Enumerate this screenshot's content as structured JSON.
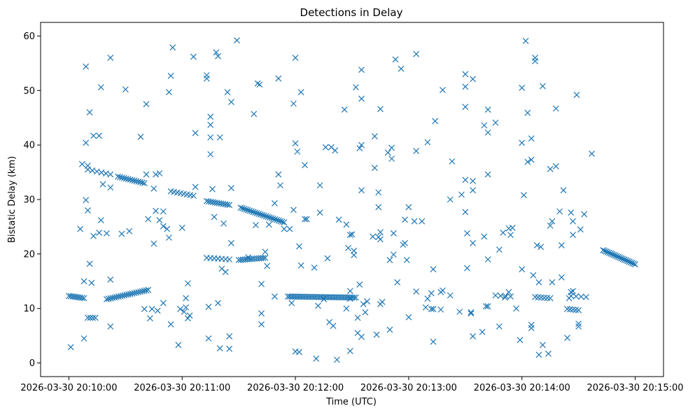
{
  "chart_data": {
    "type": "scatter",
    "title": "Detections in Delay",
    "xlabel": "Time (UTC)",
    "ylabel": "Bistatic Delay (km)",
    "x_unit": "seconds after 2026-03-30 20:10:00",
    "xlim": [
      -15,
      315
    ],
    "ylim": [
      -2.5,
      62.5
    ],
    "x_ticks": [
      {
        "value": 0,
        "label": "2026-03-30 20:10:00"
      },
      {
        "value": 60,
        "label": "2026-03-30 20:11:00"
      },
      {
        "value": 120,
        "label": "2026-03-30 20:12:00"
      },
      {
        "value": 180,
        "label": "2026-03-30 20:13:00"
      },
      {
        "value": 240,
        "label": "2026-03-30 20:14:00"
      },
      {
        "value": 300,
        "label": "2026-03-30 20:15:00"
      }
    ],
    "y_ticks": [
      {
        "value": 0,
        "label": "0"
      },
      {
        "value": 10,
        "label": "10"
      },
      {
        "value": 20,
        "label": "20"
      },
      {
        "value": 30,
        "label": "30"
      },
      {
        "value": 40,
        "label": "40"
      },
      {
        "value": 50,
        "label": "50"
      },
      {
        "value": 60,
        "label": "60"
      }
    ],
    "marker": "x",
    "color": "#1f77b4",
    "tracks": [
      {
        "name": "track-a",
        "t_start": 0,
        "t_end": 8,
        "y_start": 12.3,
        "y_end": 11.9,
        "count": 9
      },
      {
        "name": "track-b",
        "t_start": 10,
        "t_end": 14,
        "y_start": 8.3,
        "y_end": 8.3,
        "count": 4
      },
      {
        "name": "track-c",
        "t_start": 20,
        "t_end": 42,
        "y_start": 11.7,
        "y_end": 13.4,
        "count": 22
      },
      {
        "name": "track-d",
        "t_start": 10,
        "t_end": 22,
        "y_start": 35.5,
        "y_end": 34.6,
        "count": 6
      },
      {
        "name": "track-e",
        "t_start": 26,
        "t_end": 40,
        "y_start": 34.2,
        "y_end": 33.0,
        "count": 14
      },
      {
        "name": "track-f",
        "t_start": 54,
        "t_end": 66,
        "y_start": 31.5,
        "y_end": 30.7,
        "count": 8
      },
      {
        "name": "track-g",
        "t_start": 73,
        "t_end": 85,
        "y_start": 29.7,
        "y_end": 29.0,
        "count": 12
      },
      {
        "name": "track-h",
        "t_start": 91,
        "t_end": 114,
        "y_start": 28.5,
        "y_end": 25.8,
        "count": 25
      },
      {
        "name": "track-i",
        "t_start": 73,
        "t_end": 85,
        "y_start": 19.3,
        "y_end": 19.0,
        "count": 7
      },
      {
        "name": "track-j",
        "t_start": 90,
        "t_end": 104,
        "y_start": 18.9,
        "y_end": 19.3,
        "count": 14
      },
      {
        "name": "track-k",
        "t_start": 116,
        "t_end": 152,
        "y_start": 12.2,
        "y_end": 12.0,
        "count": 38
      },
      {
        "name": "track-l",
        "t_start": 226,
        "t_end": 234,
        "y_start": 12.4,
        "y_end": 12.2,
        "count": 4
      },
      {
        "name": "track-m",
        "t_start": 247,
        "t_end": 255,
        "y_start": 12.1,
        "y_end": 11.9,
        "count": 6
      },
      {
        "name": "track-n",
        "t_start": 266,
        "t_end": 274,
        "y_start": 12.3,
        "y_end": 12.1,
        "count": 4
      },
      {
        "name": "track-o",
        "t_start": 264,
        "t_end": 270,
        "y_start": 9.9,
        "y_end": 9.7,
        "count": 5
      },
      {
        "name": "track-p",
        "t_start": 283,
        "t_end": 300,
        "y_start": 20.7,
        "y_end": 18.1,
        "count": 22
      }
    ],
    "scattered_points": [
      [
        1,
        2.9
      ],
      [
        6,
        24.6
      ],
      [
        7,
        36.5
      ],
      [
        8,
        15.0
      ],
      [
        8,
        4.5
      ],
      [
        9,
        54.4
      ],
      [
        9,
        40.4
      ],
      [
        9,
        29.9
      ],
      [
        10,
        28.0
      ],
      [
        10,
        36.2
      ],
      [
        11,
        46.0
      ],
      [
        11,
        18.2
      ],
      [
        12,
        14.7
      ],
      [
        13,
        41.7
      ],
      [
        13,
        23.3
      ],
      [
        16,
        41.7
      ],
      [
        16,
        23.9
      ],
      [
        17,
        50.6
      ],
      [
        17,
        26.2
      ],
      [
        18,
        32.8
      ],
      [
        20,
        23.8
      ],
      [
        22,
        56.0
      ],
      [
        22,
        32.2
      ],
      [
        22,
        15.3
      ],
      [
        22,
        6.7
      ],
      [
        28,
        23.7
      ],
      [
        30,
        50.2
      ],
      [
        32,
        24.2
      ],
      [
        38,
        41.5
      ],
      [
        40,
        9.9
      ],
      [
        41,
        47.5
      ],
      [
        41,
        34.6
      ],
      [
        42,
        26.4
      ],
      [
        43,
        8.2
      ],
      [
        44,
        9.9
      ],
      [
        45,
        21.9
      ],
      [
        45,
        32.0
      ],
      [
        46,
        27.9
      ],
      [
        46,
        34.6
      ],
      [
        47,
        9.6
      ],
      [
        48,
        34.8
      ],
      [
        48,
        26.2
      ],
      [
        50,
        27.8
      ],
      [
        50,
        25.1
      ],
      [
        50,
        11.0
      ],
      [
        52,
        24.6
      ],
      [
        53,
        23.0
      ],
      [
        53,
        49.7
      ],
      [
        54,
        7.1
      ],
      [
        54,
        52.7
      ],
      [
        55,
        57.9
      ],
      [
        58,
        3.3
      ],
      [
        59,
        9.9
      ],
      [
        60,
        24.8
      ],
      [
        61,
        9.4
      ],
      [
        62,
        11.9
      ],
      [
        62,
        10.2
      ],
      [
        63,
        14.6
      ],
      [
        63,
        8.2
      ],
      [
        64,
        8.7
      ],
      [
        66,
        56.2
      ],
      [
        67,
        42.2
      ],
      [
        67,
        32.3
      ],
      [
        73,
        52.8
      ],
      [
        73,
        52.2
      ],
      [
        74,
        10.3
      ],
      [
        74,
        4.5
      ],
      [
        75,
        45.2
      ],
      [
        75,
        43.7
      ],
      [
        75,
        38.3
      ],
      [
        75,
        41.4
      ],
      [
        76,
        31.9
      ],
      [
        77,
        26.8
      ],
      [
        78,
        57.0
      ],
      [
        79,
        11.0
      ],
      [
        79,
        56.3
      ],
      [
        80,
        41.4
      ],
      [
        80,
        2.7
      ],
      [
        81,
        17.3
      ],
      [
        82,
        25.6
      ],
      [
        83,
        16.7
      ],
      [
        84,
        49.7
      ],
      [
        85,
        2.6
      ],
      [
        85,
        4.9
      ],
      [
        86,
        47.9
      ],
      [
        86,
        22.0
      ],
      [
        86,
        32.1
      ],
      [
        89,
        59.2
      ],
      [
        95,
        19.4
      ],
      [
        98,
        45.7
      ],
      [
        99,
        25.3
      ],
      [
        100,
        51.3
      ],
      [
        101,
        51.1
      ],
      [
        102,
        7.1
      ],
      [
        102,
        9.1
      ],
      [
        102,
        14.5
      ],
      [
        104,
        20.4
      ],
      [
        105,
        17.8
      ],
      [
        106,
        25.4
      ],
      [
        109,
        29.3
      ],
      [
        109,
        12.2
      ],
      [
        111,
        52.2
      ],
      [
        111,
        34.6
      ],
      [
        112,
        32.6
      ],
      [
        114,
        24.6
      ],
      [
        117,
        24.6
      ],
      [
        118,
        11.0
      ],
      [
        119,
        47.6
      ],
      [
        119,
        28.1
      ],
      [
        120,
        2.1
      ],
      [
        120,
        56.0
      ],
      [
        120,
        40.3
      ],
      [
        121,
        38.8
      ],
      [
        122,
        21.4
      ],
      [
        122,
        2.0
      ],
      [
        123,
        49.7
      ],
      [
        123,
        17.9
      ],
      [
        125,
        36.3
      ],
      [
        125,
        26.4
      ],
      [
        126,
        26.4
      ],
      [
        130,
        17.5
      ],
      [
        131,
        0.8
      ],
      [
        132,
        10.5
      ],
      [
        133,
        27.6
      ],
      [
        133,
        32.6
      ],
      [
        135,
        11.7
      ],
      [
        136,
        39.6
      ],
      [
        137,
        19.2
      ],
      [
        138,
        7.5
      ],
      [
        139,
        39.6
      ],
      [
        140,
        6.8
      ],
      [
        141,
        39.0
      ],
      [
        142,
        0.6
      ],
      [
        143,
        26.3
      ],
      [
        146,
        46.5
      ],
      [
        147,
        10.0
      ],
      [
        147,
        25.4
      ],
      [
        148,
        21.1
      ],
      [
        149,
        2.2
      ],
      [
        149,
        11.8
      ],
      [
        149,
        23.5
      ],
      [
        149,
        13.2
      ],
      [
        150,
        23.6
      ],
      [
        151,
        19.8
      ],
      [
        151,
        20.6
      ],
      [
        152,
        50.6
      ],
      [
        153,
        8.3
      ],
      [
        153,
        5.5
      ],
      [
        154,
        39.4
      ],
      [
        154,
        14.4
      ],
      [
        155,
        40.0
      ],
      [
        155,
        4.8
      ],
      [
        155,
        53.8
      ],
      [
        155,
        48.5
      ],
      [
        155,
        31.7
      ],
      [
        156,
        10.8
      ],
      [
        157,
        9.3
      ],
      [
        158,
        11.3
      ],
      [
        161,
        23.2
      ],
      [
        162,
        41.6
      ],
      [
        162,
        35.8
      ],
      [
        163,
        5.2
      ],
      [
        164,
        23.1
      ],
      [
        164,
        31.3
      ],
      [
        164,
        28.6
      ],
      [
        165,
        46.6
      ],
      [
        165,
        22.7
      ],
      [
        165,
        24.0
      ],
      [
        165,
        10.8
      ],
      [
        166,
        11.2
      ],
      [
        169,
        38.6
      ],
      [
        170,
        6.1
      ],
      [
        170,
        18.9
      ],
      [
        171,
        39.5
      ],
      [
        171,
        37.5
      ],
      [
        172,
        19.9
      ],
      [
        172,
        23.8
      ],
      [
        173,
        55.7
      ],
      [
        174,
        14.8
      ],
      [
        176,
        54.0
      ],
      [
        177,
        21.7
      ],
      [
        178,
        26.3
      ],
      [
        178,
        22.0
      ],
      [
        179,
        18.9
      ],
      [
        180,
        28.6
      ],
      [
        180,
        8.4
      ],
      [
        183,
        26.0
      ],
      [
        184,
        56.7
      ],
      [
        184,
        38.9
      ],
      [
        184,
        13.1
      ],
      [
        187,
        26.0
      ],
      [
        189,
        10.2
      ],
      [
        190,
        40.5
      ],
      [
        190,
        11.8
      ],
      [
        192,
        9.9
      ],
      [
        192,
        12.8
      ],
      [
        193,
        9.9
      ],
      [
        193,
        17.2
      ],
      [
        193,
        3.9
      ],
      [
        194,
        44.4
      ],
      [
        197,
        9.8
      ],
      [
        197,
        13.0
      ],
      [
        198,
        50.1
      ],
      [
        198,
        13.3
      ],
      [
        202,
        30.0
      ],
      [
        202,
        12.4
      ],
      [
        203,
        37.0
      ],
      [
        207,
        9.4
      ],
      [
        208,
        30.9
      ],
      [
        210,
        53.0
      ],
      [
        210,
        47.0
      ],
      [
        210,
        27.7
      ],
      [
        210,
        50.7
      ],
      [
        210,
        33.6
      ],
      [
        211,
        23.8
      ],
      [
        211,
        17.4
      ],
      [
        213,
        9.3
      ],
      [
        213,
        9.1
      ],
      [
        214,
        33.4
      ],
      [
        214,
        31.7
      ],
      [
        214,
        52.1
      ],
      [
        214,
        22.0
      ],
      [
        214,
        4.9
      ],
      [
        219,
        5.7
      ],
      [
        220,
        43.6
      ],
      [
        220,
        23.2
      ],
      [
        221,
        10.4
      ],
      [
        222,
        42.3
      ],
      [
        222,
        46.5
      ],
      [
        222,
        34.6
      ],
      [
        222,
        19.0
      ],
      [
        222,
        10.4
      ],
      [
        226,
        44.1
      ],
      [
        228,
        20.8
      ],
      [
        228,
        6.7
      ],
      [
        230,
        23.9
      ],
      [
        231,
        12.0
      ],
      [
        233,
        24.7
      ],
      [
        233,
        13.0
      ],
      [
        234,
        23.5
      ],
      [
        235,
        24.8
      ],
      [
        237,
        10.0
      ],
      [
        239,
        4.2
      ],
      [
        240,
        17.2
      ],
      [
        240,
        50.5
      ],
      [
        240,
        40.4
      ],
      [
        241,
        30.8
      ],
      [
        242,
        59.1
      ],
      [
        243,
        45.9
      ],
      [
        243,
        36.9
      ],
      [
        245,
        37.3
      ],
      [
        245,
        41.2
      ],
      [
        245,
        6.4
      ],
      [
        245,
        7.0
      ],
      [
        246,
        16.1
      ],
      [
        247,
        56.0
      ],
      [
        247,
        55.4
      ],
      [
        248,
        21.6
      ],
      [
        249,
        1.5
      ],
      [
        249,
        14.8
      ],
      [
        250,
        21.3
      ],
      [
        251,
        3.3
      ],
      [
        251,
        50.8
      ],
      [
        254,
        1.7
      ],
      [
        255,
        35.6
      ],
      [
        255,
        25.2
      ],
      [
        256,
        26.0
      ],
      [
        256,
        14.8
      ],
      [
        258,
        36.1
      ],
      [
        258,
        46.7
      ],
      [
        260,
        27.8
      ],
      [
        261,
        21.6
      ],
      [
        261,
        15.7
      ],
      [
        262,
        31.7
      ],
      [
        264,
        4.6
      ],
      [
        265,
        11.9
      ],
      [
        266,
        27.6
      ],
      [
        266,
        13.0
      ],
      [
        267,
        13.2
      ],
      [
        267,
        23.5
      ],
      [
        267,
        26.0
      ],
      [
        269,
        49.2
      ],
      [
        270,
        7.2
      ],
      [
        270,
        6.7
      ],
      [
        271,
        24.5
      ],
      [
        273,
        27.3
      ],
      [
        277,
        38.4
      ]
    ]
  }
}
